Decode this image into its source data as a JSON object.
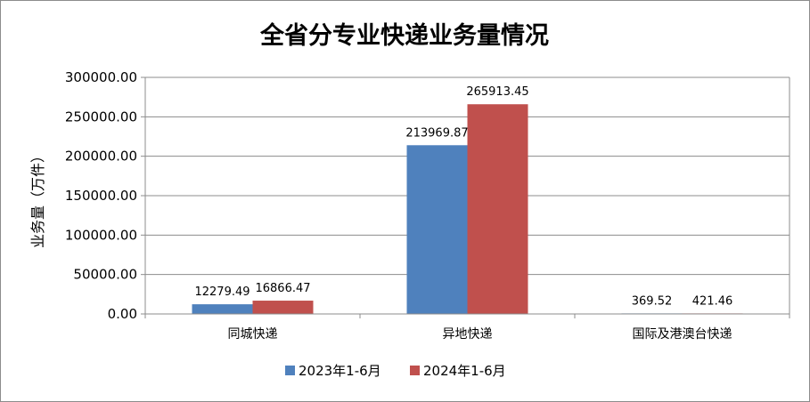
{
  "chart_data": {
    "type": "bar",
    "title": "全省分专业快递业务量情况",
    "ylabel": "业务量（万件）",
    "xlabel": "",
    "categories": [
      "同城快递",
      "异地快递",
      "国际及港澳台快递"
    ],
    "series": [
      {
        "name": "2023年1-6月",
        "color": "#4f81bd",
        "values": [
          12279.49,
          213969.87,
          369.52
        ]
      },
      {
        "name": "2024年1-6月",
        "color": "#c0504d",
        "values": [
          16866.47,
          265913.45,
          421.46
        ]
      }
    ],
    "ylim": [
      0,
      300000
    ],
    "yticks": [
      0,
      50000,
      100000,
      150000,
      200000,
      250000,
      300000
    ],
    "ytick_labels": [
      "0.00",
      "50000.00",
      "100000.00",
      "150000.00",
      "200000.00",
      "250000.00",
      "300000.00"
    ],
    "data_labels": [
      [
        "12279.49",
        "213969.87",
        "369.52"
      ],
      [
        "16866.47",
        "265913.45",
        "421.46"
      ]
    ],
    "grid": true,
    "legend": "bottom"
  }
}
